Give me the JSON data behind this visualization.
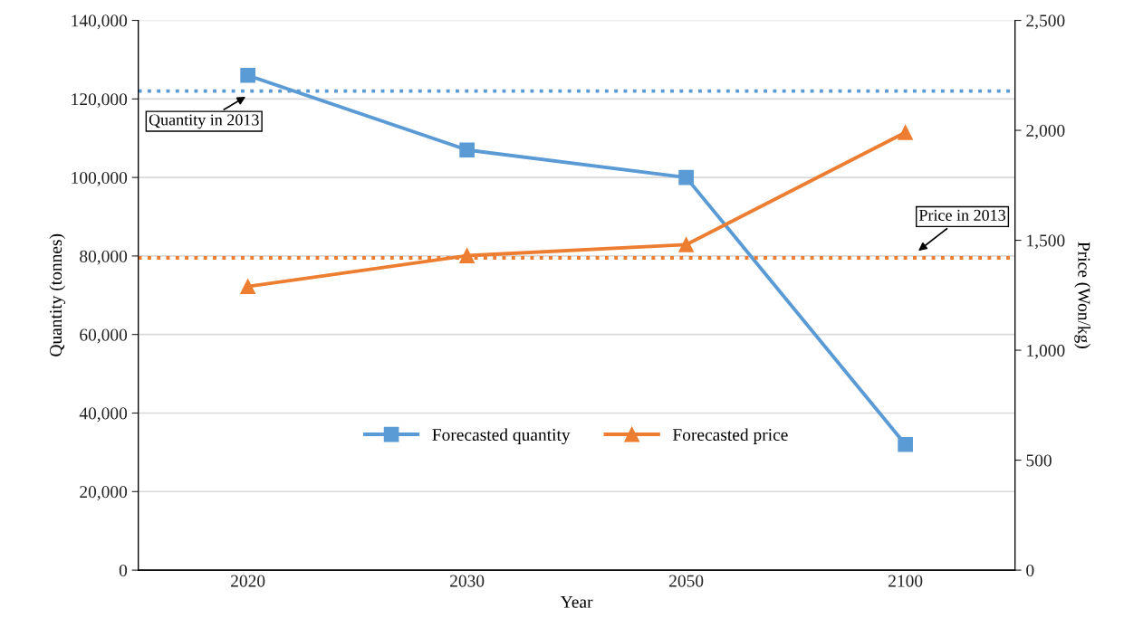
{
  "chart_data": {
    "type": "line",
    "xlabel": "Year",
    "ylabel": "Quantity (tonnes)",
    "y2label": "Price (Won/kg)",
    "categories": [
      "2020",
      "2030",
      "2050",
      "2100"
    ],
    "series": [
      {
        "name": "Forecasted quantity",
        "color": "#5b9bd5",
        "values": [
          126000,
          107000,
          100000,
          32000
        ],
        "marker": "square"
      },
      {
        "name": "Forecasted price",
        "color": "#ed7d31",
        "values": [
          1290,
          1430,
          1480,
          1990
        ],
        "axis": "y2",
        "marker": "triangle"
      }
    ],
    "ylim": [
      0,
      140000
    ],
    "yticks": [
      {
        "value": 0,
        "label": "0"
      },
      {
        "value": 20000,
        "label": "20,000"
      },
      {
        "value": 40000,
        "label": "40,000"
      },
      {
        "value": 60000,
        "label": "60,000"
      },
      {
        "value": 80000,
        "label": "80,000"
      },
      {
        "value": 100000,
        "label": "100,000"
      },
      {
        "value": 120000,
        "label": "120,000"
      },
      {
        "value": 140000,
        "label": "140,000"
      }
    ],
    "y2lim": [
      0,
      2500
    ],
    "y2ticks": [
      {
        "value": 0,
        "label": "0"
      },
      {
        "value": 500,
        "label": "500"
      },
      {
        "value": 1000,
        "label": "1,000"
      },
      {
        "value": 1500,
        "label": "1,500"
      },
      {
        "value": 2000,
        "label": "2,000"
      },
      {
        "value": 2500,
        "label": "2,500"
      }
    ],
    "ref_lines": [
      {
        "axis": "y",
        "value": 122000,
        "label": "Quantity in 2013",
        "color": "#5b9bd5",
        "line_style": "dotted"
      },
      {
        "axis": "y2",
        "value": 1420,
        "label": "Price in 2013",
        "color": "#ed7d31",
        "line_style": "dotted"
      }
    ],
    "grid": "y",
    "legend": "bottom",
    "line_style": "solid"
  }
}
